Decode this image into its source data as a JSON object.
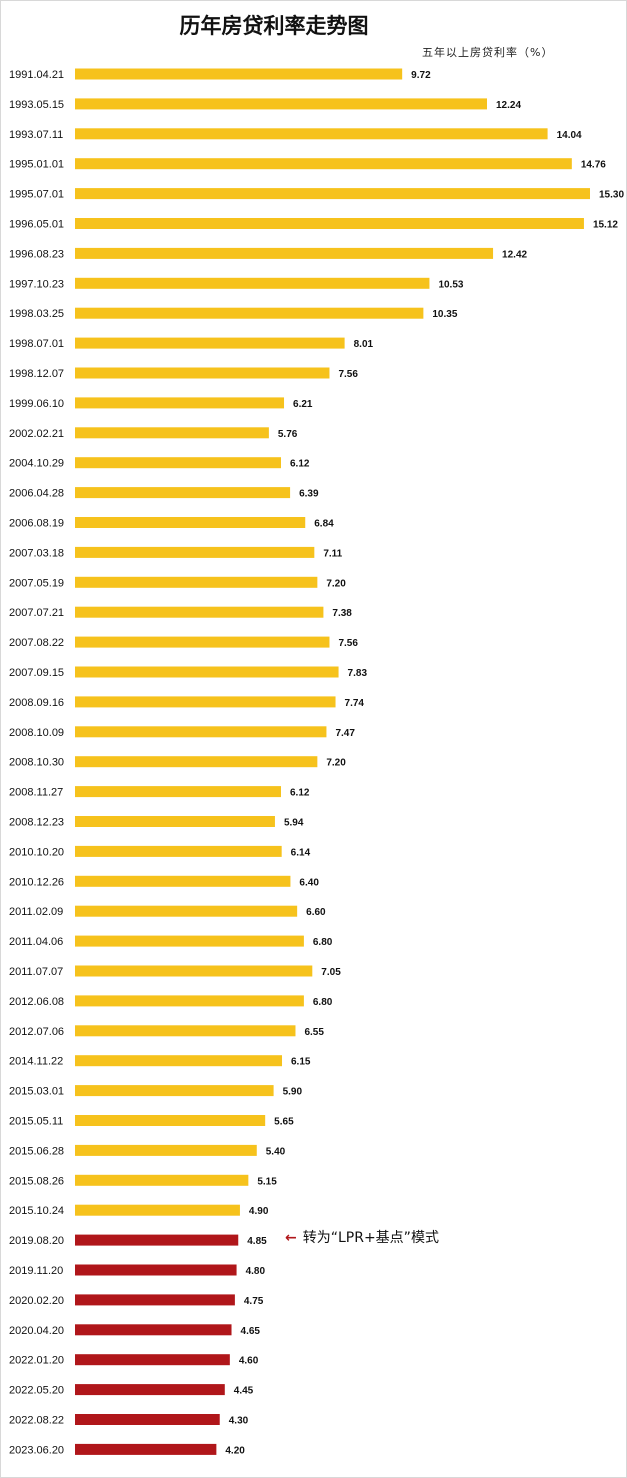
{
  "chart_data": {
    "type": "bar",
    "orientation": "horizontal",
    "title": "历年房贷利率走势图",
    "unit_label": "五年以上房贷利率（%）",
    "categories": [
      "1991.04.21",
      "1993.05.15",
      "1993.07.11",
      "1995.01.01",
      "1995.07.01",
      "1996.05.01",
      "1996.08.23",
      "1997.10.23",
      "1998.03.25",
      "1998.07.01",
      "1998.12.07",
      "1999.06.10",
      "2002.02.21",
      "2004.10.29",
      "2006.04.28",
      "2006.08.19",
      "2007.03.18",
      "2007.05.19",
      "2007.07.21",
      "2007.08.22",
      "2007.09.15",
      "2008.09.16",
      "2008.10.09",
      "2008.10.30",
      "2008.11.27",
      "2008.12.23",
      "2010.10.20",
      "2010.12.26",
      "2011.02.09",
      "2011.04.06",
      "2011.07.07",
      "2012.06.08",
      "2012.07.06",
      "2014.11.22",
      "2015.03.01",
      "2015.05.11",
      "2015.06.28",
      "2015.08.26",
      "2015.10.24",
      "2019.08.20",
      "2019.11.20",
      "2020.02.20",
      "2020.04.20",
      "2022.01.20",
      "2022.05.20",
      "2022.08.22",
      "2023.06.20"
    ],
    "values": [
      9.72,
      12.24,
      14.04,
      14.76,
      15.3,
      15.12,
      12.42,
      10.53,
      10.35,
      8.01,
      7.56,
      6.21,
      5.76,
      6.12,
      6.39,
      6.84,
      7.11,
      7.2,
      7.38,
      7.56,
      7.83,
      7.74,
      7.47,
      7.2,
      6.12,
      5.94,
      6.14,
      6.4,
      6.6,
      6.8,
      7.05,
      6.8,
      6.55,
      6.15,
      5.9,
      5.65,
      5.4,
      5.15,
      4.9,
      4.85,
      4.8,
      4.75,
      4.65,
      4.6,
      4.45,
      4.3,
      4.2
    ],
    "value_labels": [
      "9.72",
      "12.24",
      "14.04",
      "14.76",
      "15.30",
      "15.12",
      "12.42",
      "10.53",
      "10.35",
      "8.01",
      "7.56",
      "6.21",
      "5.76",
      "6.12",
      "6.39",
      "6.84",
      "7.11",
      "7.20",
      "7.38",
      "7.56",
      "7.83",
      "7.74",
      "7.47",
      "7.20",
      "6.12",
      "5.94",
      "6.14",
      "6.40",
      "6.60",
      "6.80",
      "7.05",
      "6.80",
      "6.55",
      "6.15",
      "5.90",
      "5.65",
      "5.40",
      "5.15",
      "4.90",
      "4.85",
      "4.80",
      "4.75",
      "4.65",
      "4.60",
      "4.45",
      "4.30",
      "4.20"
    ],
    "lpr_start_index": 39,
    "xlim": [
      0,
      15.3
    ],
    "grid": false,
    "legend": "none",
    "colors": {
      "benchmark": "#F6C21C",
      "lpr": "#B0161A"
    },
    "annotation": {
      "text": "转为“LPR+基点”模式",
      "target_category": "2019.08.20",
      "arrow_icon": "left-arrow-icon"
    }
  }
}
